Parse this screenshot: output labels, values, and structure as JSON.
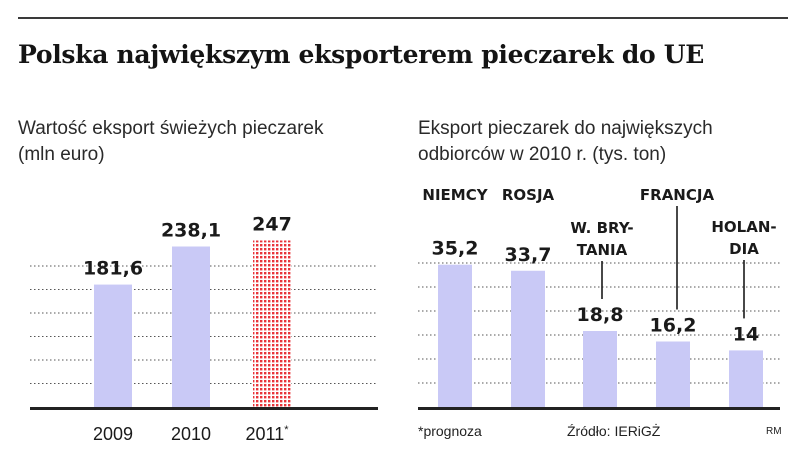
{
  "headline": "Polska największym eksporterem pieczarek do UE",
  "chart_data": [
    {
      "type": "bar",
      "title": "Wartość eksport świeżych pieczarek (mln euro)",
      "categories": [
        "2009",
        "2010",
        "2011*"
      ],
      "values": [
        181.6,
        238.1,
        247
      ],
      "value_labels": [
        "181,6",
        "238,1",
        "247"
      ],
      "forecast_index": 2,
      "ylim": [
        0,
        270
      ],
      "grid": true,
      "colors": {
        "bar": "#c9c9f6",
        "forecast": "#e8343a",
        "axis": "#222222",
        "grid": "#555555"
      }
    },
    {
      "type": "bar",
      "title": "Eksport pieczarek do największych odbiorców w 2010 r. (tys. ton)",
      "categories": [
        "NIEMCY",
        "ROSJA",
        "W. BRY-TANIA",
        "FRANCJA",
        "HOLAN-DIA"
      ],
      "category_lines": [
        [
          "NIEMCY"
        ],
        [
          "ROSJA"
        ],
        [
          "W. BRY-",
          "TANIA"
        ],
        [
          "FRANCJA"
        ],
        [
          "HOLAN-",
          "DIA"
        ]
      ],
      "values": [
        35.2,
        33.7,
        18.8,
        16.2,
        14
      ],
      "value_labels": [
        "35,2",
        "33,7",
        "18,8",
        "16,2",
        "14"
      ],
      "ylim": [
        0,
        47
      ],
      "grid": true,
      "colors": {
        "bar": "#c9c9f6",
        "axis": "#222222",
        "grid": "#555555"
      }
    }
  ],
  "footer": {
    "note": "*prognoza",
    "source": "Źródło: IERiGŻ",
    "credit": "RM"
  }
}
